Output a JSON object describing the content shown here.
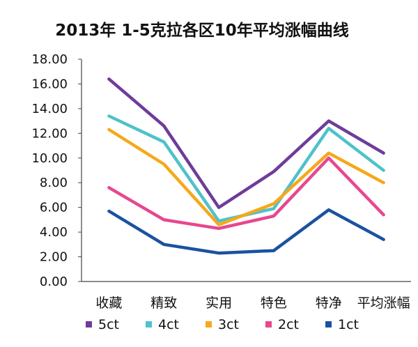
{
  "chart_data": {
    "type": "line",
    "title": "2013年 1-5克拉各区10年平均涨幅曲线",
    "categories": [
      "收藏",
      "精致",
      "实用",
      "特色",
      "特净",
      "平均涨幅"
    ],
    "yticks": [
      "18.00",
      "16.00",
      "14.00",
      "12.00",
      "10.00",
      "8.00",
      "6.00",
      "4.00",
      "2.00",
      "0.00"
    ],
    "ylim": [
      0,
      18
    ],
    "grid": false,
    "legend_position": "bottom",
    "series": [
      {
        "name": "5ct",
        "color": "#6f3c9a",
        "values": [
          16.4,
          12.6,
          6.0,
          8.9,
          13.0,
          10.4
        ]
      },
      {
        "name": "4ct",
        "color": "#4ec2cb",
        "values": [
          13.4,
          11.3,
          4.9,
          5.9,
          12.4,
          9.0
        ]
      },
      {
        "name": "3ct",
        "color": "#f6a81a",
        "values": [
          12.3,
          9.5,
          4.6,
          6.3,
          10.4,
          8.0
        ]
      },
      {
        "name": "2ct",
        "color": "#e7478f",
        "values": [
          7.6,
          5.0,
          4.3,
          5.3,
          10.0,
          5.4
        ]
      },
      {
        "name": "1ct",
        "color": "#1a52a0",
        "values": [
          5.7,
          3.0,
          2.3,
          2.5,
          5.8,
          3.4
        ]
      }
    ]
  }
}
